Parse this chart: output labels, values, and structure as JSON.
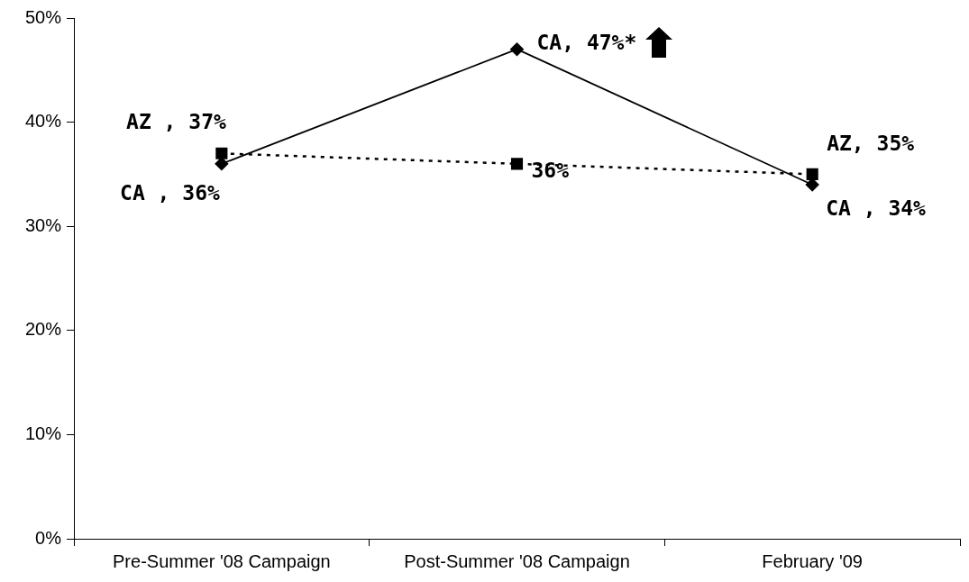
{
  "chart_data": {
    "type": "line",
    "categories": [
      "Pre-Summer '08 Campaign",
      "Post-Summer '08 Campaign",
      "February '09"
    ],
    "series": [
      {
        "color": "#000000",
        "values": [
          36,
          47,
          34
        ],
        "marker": "diamond",
        "line_style": "solid",
        "value_labels": [
          "CA , 36%",
          "CA, 47%*",
          "CA , 34%"
        ]
      },
      {
        "color": "#000000",
        "values": [
          37,
          36,
          35
        ],
        "marker": "square",
        "line_style": "dotted",
        "value_labels": [
          "AZ , 37%",
          "36%",
          "AZ, 35%"
        ]
      }
    ],
    "ylim": [
      0,
      50
    ],
    "yticks": [
      {
        "value": 0,
        "label": "0%"
      },
      {
        "value": 10,
        "label": "10%"
      },
      {
        "value": 20,
        "label": "20%"
      },
      {
        "value": 30,
        "label": "30%"
      },
      {
        "value": 40,
        "label": "40%"
      },
      {
        "value": 50,
        "label": "50%"
      }
    ]
  }
}
